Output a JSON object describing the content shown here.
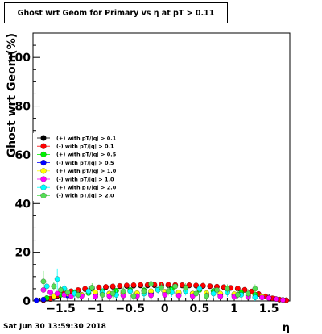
{
  "title": "Ghost wrt Geom for Primary vs   η at pT > 0.11",
  "timestamp": "Sat Jun 30 13:59:30 2018",
  "chart_data": {
    "type": "scatter",
    "title": "Ghost wrt Geom for Primary vs   η at pT > 0.11",
    "xlabel": "η",
    "ylabel": "Ghost wrt Geom(%)",
    "xlim": [
      -1.9,
      1.8
    ],
    "ylim": [
      0,
      110
    ],
    "x_ticks": [
      -1.5,
      -1,
      -0.5,
      0,
      0.5,
      1,
      1.5
    ],
    "x_tick_labels": [
      "−1.5",
      "−1",
      "−0.5",
      "0",
      "0.5",
      "1",
      "1.5"
    ],
    "y_ticks": [
      0,
      20,
      40,
      60,
      80,
      100
    ],
    "y_tick_labels": [
      "0",
      "20",
      "40",
      "60",
      "80",
      "100"
    ],
    "grid": false,
    "legend_position": "left-middle",
    "series": [
      {
        "name": "(+) with pT/|q| > 0.1",
        "color": "#000000",
        "points": [
          [
            -1.75,
            0.3
          ],
          [
            -1.65,
            0.8
          ],
          [
            -1.55,
            2.0
          ],
          [
            -1.45,
            3.0
          ],
          [
            -1.35,
            3.8
          ],
          [
            -1.25,
            4.3
          ],
          [
            -1.15,
            4.8
          ],
          [
            -1.05,
            5.1
          ],
          [
            -0.95,
            5.4
          ],
          [
            -0.85,
            5.6
          ],
          [
            -0.75,
            5.8
          ],
          [
            -0.65,
            6.0
          ],
          [
            -0.55,
            6.1
          ],
          [
            -0.45,
            6.2
          ],
          [
            -0.35,
            6.3
          ],
          [
            -0.25,
            6.3
          ],
          [
            -0.15,
            6.4
          ],
          [
            -0.05,
            6.4
          ],
          [
            0.05,
            6.4
          ],
          [
            0.15,
            6.4
          ],
          [
            0.25,
            6.3
          ],
          [
            0.35,
            6.3
          ],
          [
            0.45,
            6.2
          ],
          [
            0.55,
            6.1
          ],
          [
            0.65,
            6.0
          ],
          [
            0.75,
            5.8
          ],
          [
            0.85,
            5.6
          ],
          [
            0.95,
            5.3
          ],
          [
            1.05,
            5.0
          ],
          [
            1.15,
            4.5
          ],
          [
            1.25,
            3.8
          ],
          [
            1.35,
            2.8
          ],
          [
            1.45,
            1.8
          ],
          [
            1.55,
            1.0
          ],
          [
            1.65,
            0.5
          ],
          [
            1.75,
            0.3
          ]
        ]
      },
      {
        "name": "(-) with pT/|q| > 0.1",
        "color": "#ff0000",
        "points": [
          [
            -1.75,
            0.4
          ],
          [
            -1.65,
            1.0
          ],
          [
            -1.55,
            2.2
          ],
          [
            -1.45,
            3.2
          ],
          [
            -1.35,
            4.0
          ],
          [
            -1.25,
            4.5
          ],
          [
            -1.15,
            5.0
          ],
          [
            -1.05,
            5.3
          ],
          [
            -0.95,
            5.6
          ],
          [
            -0.85,
            5.8
          ],
          [
            -0.75,
            6.0
          ],
          [
            -0.65,
            6.2
          ],
          [
            -0.55,
            6.4
          ],
          [
            -0.45,
            6.5
          ],
          [
            -0.35,
            6.6
          ],
          [
            -0.25,
            6.6
          ],
          [
            -0.15,
            6.7
          ],
          [
            -0.05,
            6.7
          ],
          [
            0.05,
            6.7
          ],
          [
            0.15,
            6.6
          ],
          [
            0.25,
            6.5
          ],
          [
            0.35,
            6.5
          ],
          [
            0.45,
            6.4
          ],
          [
            0.55,
            6.3
          ],
          [
            0.65,
            6.1
          ],
          [
            0.75,
            5.9
          ],
          [
            0.85,
            5.7
          ],
          [
            0.95,
            5.4
          ],
          [
            1.05,
            5.1
          ],
          [
            1.15,
            4.6
          ],
          [
            1.25,
            3.9
          ],
          [
            1.35,
            2.9
          ],
          [
            1.45,
            1.9
          ],
          [
            1.55,
            1.1
          ],
          [
            1.65,
            0.6
          ],
          [
            1.75,
            0.3
          ]
        ]
      },
      {
        "name": "(+) with pT/|q| > 0.5",
        "color": "#00ee00",
        "points": [
          [
            -1.7,
            1.2
          ],
          [
            -1.5,
            2.5
          ],
          [
            -1.3,
            3.5
          ],
          [
            -1.1,
            3.2
          ],
          [
            -0.9,
            4.0
          ],
          [
            -0.7,
            4.2
          ],
          [
            -0.5,
            4.5
          ],
          [
            -0.3,
            4.4
          ],
          [
            -0.1,
            4.6
          ],
          [
            0.1,
            4.8
          ],
          [
            0.3,
            4.3
          ],
          [
            0.5,
            4.5
          ],
          [
            0.7,
            4.1
          ],
          [
            0.9,
            3.9
          ],
          [
            1.1,
            3.4
          ],
          [
            1.3,
            2.6
          ],
          [
            1.5,
            1.2
          ],
          [
            1.7,
            0.4
          ]
        ]
      },
      {
        "name": "(-) with pT/|q| > 0.5",
        "color": "#0000ff",
        "points": [
          [
            -1.85,
            0.3
          ],
          [
            -1.75,
            0.6
          ],
          [
            -1.6,
            1.5
          ],
          [
            -1.4,
            2.2
          ],
          [
            -1.2,
            2.5
          ],
          [
            -1.0,
            2.8
          ],
          [
            -0.8,
            3.0
          ],
          [
            -0.6,
            3.1
          ],
          [
            -0.4,
            3.0
          ],
          [
            -0.2,
            3.2
          ],
          [
            0.0,
            3.3
          ],
          [
            0.2,
            3.1
          ],
          [
            0.4,
            3.0
          ],
          [
            0.6,
            2.9
          ],
          [
            0.8,
            2.7
          ],
          [
            1.0,
            2.5
          ],
          [
            1.2,
            2.2
          ],
          [
            1.4,
            1.5
          ],
          [
            1.6,
            0.8
          ]
        ]
      },
      {
        "name": "(+) with pT/|q| > 1.0",
        "color": "#ffff00",
        "points": [
          [
            -1.6,
            2.0
          ],
          [
            -1.4,
            3.0
          ],
          [
            -1.2,
            2.5
          ],
          [
            -1.0,
            3.5
          ],
          [
            -0.8,
            3.0
          ],
          [
            -0.6,
            3.5
          ],
          [
            -0.4,
            3.2
          ],
          [
            -0.2,
            4.0
          ],
          [
            0.0,
            3.8
          ],
          [
            0.2,
            3.5
          ],
          [
            0.4,
            3.0
          ],
          [
            0.6,
            3.2
          ],
          [
            0.8,
            3.0
          ],
          [
            1.0,
            2.8
          ],
          [
            1.2,
            2.5
          ],
          [
            1.4,
            1.8
          ]
        ]
      },
      {
        "name": "(-) with pT/|q| > 1.0",
        "color": "#ff00ff",
        "points": [
          [
            -1.75,
            4.5
          ],
          [
            -1.65,
            3.5
          ],
          [
            -1.55,
            3.0
          ],
          [
            -1.45,
            2.5
          ],
          [
            -1.35,
            2.0
          ],
          [
            -1.2,
            2.0
          ],
          [
            -1.0,
            1.8
          ],
          [
            -0.8,
            2.0
          ],
          [
            -0.6,
            2.2
          ],
          [
            -0.4,
            2.0
          ],
          [
            -0.2,
            2.3
          ],
          [
            0.0,
            2.5
          ],
          [
            0.2,
            2.2
          ],
          [
            0.4,
            2.0
          ],
          [
            0.6,
            2.1
          ],
          [
            0.8,
            1.9
          ],
          [
            1.0,
            1.8
          ],
          [
            1.2,
            1.6
          ],
          [
            1.4,
            1.4
          ],
          [
            1.5,
            1.2
          ],
          [
            1.6,
            0.8
          ],
          [
            1.7,
            0.4
          ]
        ]
      },
      {
        "name": "(+) with pT/|q| > 2.0",
        "color": "#00ffff",
        "points": [
          [
            -1.7,
            6.0
          ],
          [
            -1.55,
            9.0
          ],
          [
            -1.45,
            5.0
          ],
          [
            -1.3,
            3.0
          ],
          [
            -1.1,
            4.0
          ],
          [
            -0.9,
            3.5
          ],
          [
            -0.7,
            2.5
          ],
          [
            -0.5,
            4.0
          ],
          [
            -0.3,
            3.0
          ],
          [
            -0.1,
            4.5
          ],
          [
            0.1,
            3.5
          ],
          [
            0.3,
            4.0
          ],
          [
            0.5,
            5.0
          ],
          [
            0.7,
            3.0
          ],
          [
            0.9,
            3.5
          ],
          [
            1.1,
            2.5
          ],
          [
            1.3,
            1.5
          ]
        ]
      },
      {
        "name": "(-) with pT/|q| > 2.0",
        "color": "#55dd55",
        "points": [
          [
            -1.75,
            8.0
          ],
          [
            -1.6,
            6.0
          ],
          [
            -1.5,
            4.5
          ],
          [
            -1.4,
            3.5
          ],
          [
            -1.25,
            2.5
          ],
          [
            -1.05,
            5.5
          ],
          [
            -0.9,
            2.5
          ],
          [
            -0.75,
            3.0
          ],
          [
            -0.6,
            4.0
          ],
          [
            -0.45,
            2.0
          ],
          [
            -0.3,
            4.0
          ],
          [
            -0.2,
            7.0
          ],
          [
            -0.05,
            5.5
          ],
          [
            0.05,
            4.0
          ],
          [
            0.15,
            6.0
          ],
          [
            0.3,
            5.5
          ],
          [
            0.45,
            3.0
          ],
          [
            0.6,
            2.0
          ],
          [
            0.75,
            4.5
          ],
          [
            0.9,
            5.0
          ],
          [
            1.05,
            2.5
          ],
          [
            1.2,
            3.0
          ],
          [
            1.3,
            5.0
          ]
        ]
      }
    ]
  }
}
